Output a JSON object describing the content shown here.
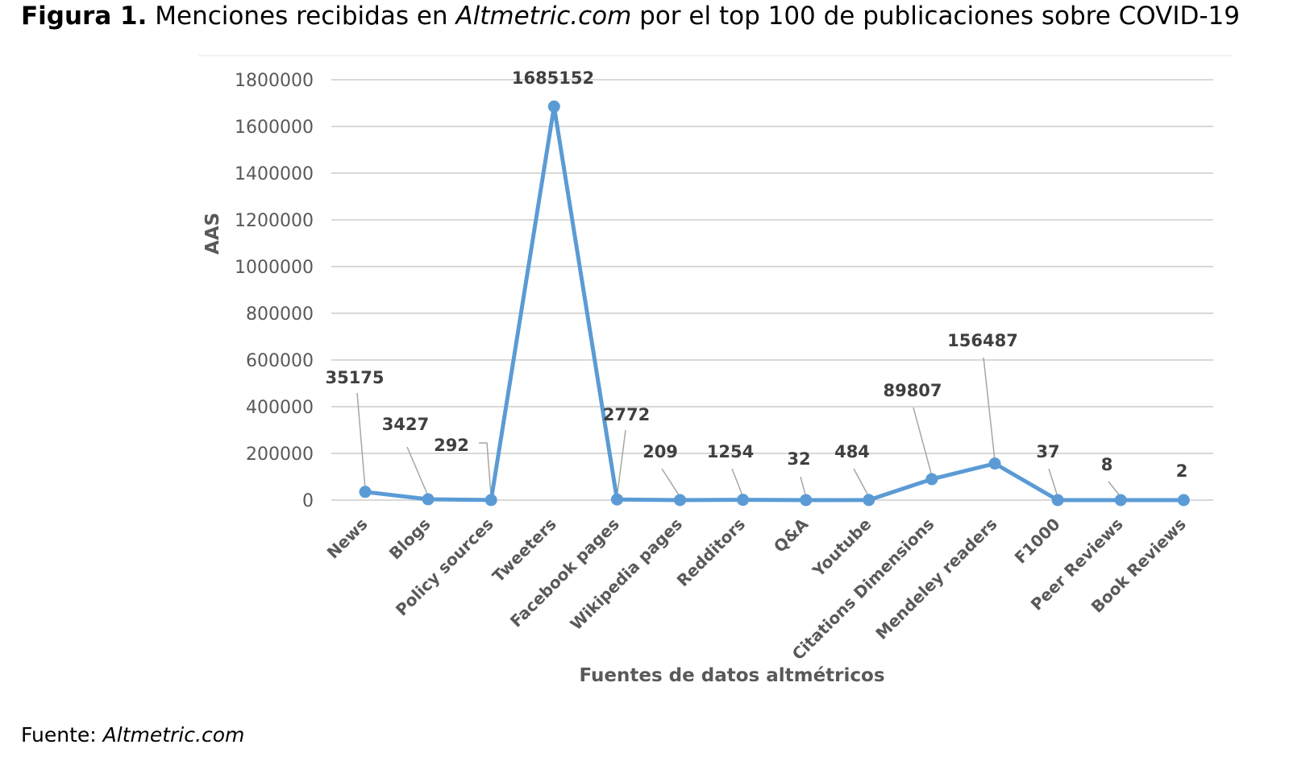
{
  "caption": {
    "prefix": "Figura 1.",
    "text_before": " Menciones recibidas en ",
    "italic": "Altmetric.com",
    "text_after": " por el top 100 de publicaciones sobre COVID-19"
  },
  "source": {
    "label": "Fuente: ",
    "italic": "Altmetric.com"
  },
  "chart_data": {
    "type": "line",
    "title": "",
    "xlabel": "Fuentes de datos altmétricos",
    "ylabel": "AAS",
    "ylim": [
      0,
      1800000
    ],
    "yticks": [
      0,
      200000,
      400000,
      600000,
      800000,
      1000000,
      1200000,
      1400000,
      1600000,
      1800000
    ],
    "grid": true,
    "legend": "none",
    "color": "#5b9bd5",
    "categories": [
      "News",
      "Blogs",
      "Policy sources",
      "Tweeters",
      "Facebook pages",
      "Wikipedia pages",
      "Redditors",
      "Q&A",
      "Youtube",
      "Citations Dimensions",
      "Mendeley readers",
      "F1000",
      "Peer Reviews",
      "Book Reviews"
    ],
    "values": [
      35175,
      3427,
      292,
      1685152,
      2772,
      209,
      1254,
      32,
      484,
      89807,
      156487,
      37,
      8,
      2
    ]
  }
}
